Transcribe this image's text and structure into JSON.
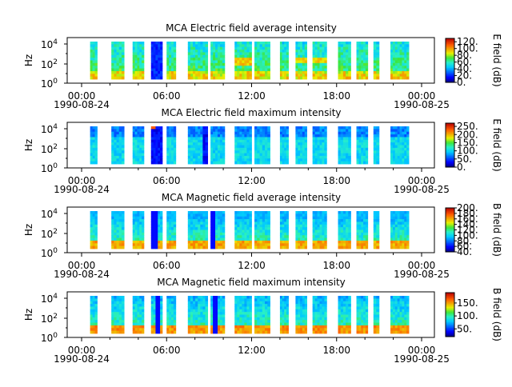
{
  "chart_data": [
    {
      "type": "heatmap",
      "title": "MCA  Electric field average intensity",
      "ylabel": "Hz",
      "ytick_exponents": [
        "4",
        "2",
        "0"
      ],
      "xticks": [
        "00:00",
        "06:00",
        "12:00",
        "18:00",
        "00:00"
      ],
      "xdates": [
        "1990-08-24",
        "1990-08-25"
      ],
      "colorbar": {
        "label": "E field (dB)",
        "range": [
          0,
          130
        ],
        "ticks": [
          "0.",
          "20.",
          "40.",
          "60.",
          "80.",
          "100.",
          "120."
        ]
      },
      "mode": "avg_e"
    },
    {
      "type": "heatmap",
      "title": "MCA  Electric field maximum intensity",
      "ylabel": "Hz",
      "ytick_exponents": [
        "4",
        "2",
        "0"
      ],
      "xticks": [
        "00:00",
        "06:00",
        "12:00",
        "18:00",
        "00:00"
      ],
      "xdates": [
        "1990-08-24",
        "1990-08-25"
      ],
      "colorbar": {
        "label": "E field (dB)",
        "range": [
          0,
          270
        ],
        "ticks": [
          "0.",
          "50.",
          "100.",
          "150.",
          "200.",
          "250."
        ]
      },
      "mode": "max_e"
    },
    {
      "type": "heatmap",
      "title": "MCA  Magnetic field average intensity",
      "ylabel": "Hz",
      "ytick_exponents": [
        "4",
        "2",
        "0"
      ],
      "xticks": [
        "00:00",
        "06:00",
        "12:00",
        "18:00",
        "00:00"
      ],
      "xdates": [
        "1990-08-24",
        "1990-08-25"
      ],
      "colorbar": {
        "label": "B field (dB)",
        "range": [
          40,
          200
        ],
        "ticks": [
          "40.",
          "60.",
          "80.",
          "100.",
          "120.",
          "140.",
          "160.",
          "180.",
          "200."
        ]
      },
      "mode": "avg_b"
    },
    {
      "type": "heatmap",
      "title": "MCA  Magnetic field maximum intensity",
      "ylabel": "Hz",
      "ytick_exponents": [
        "4",
        "2",
        "0"
      ],
      "xticks": [
        "00:00",
        "06:00",
        "12:00",
        "18:00",
        "00:00"
      ],
      "xdates": [
        "1990-08-24",
        "1990-08-25"
      ],
      "colorbar": {
        "label": "B field (dB)",
        "range": [
          20,
          190
        ],
        "ticks": [
          "50.",
          "100.",
          "150."
        ]
      },
      "mode": "max_b"
    }
  ]
}
